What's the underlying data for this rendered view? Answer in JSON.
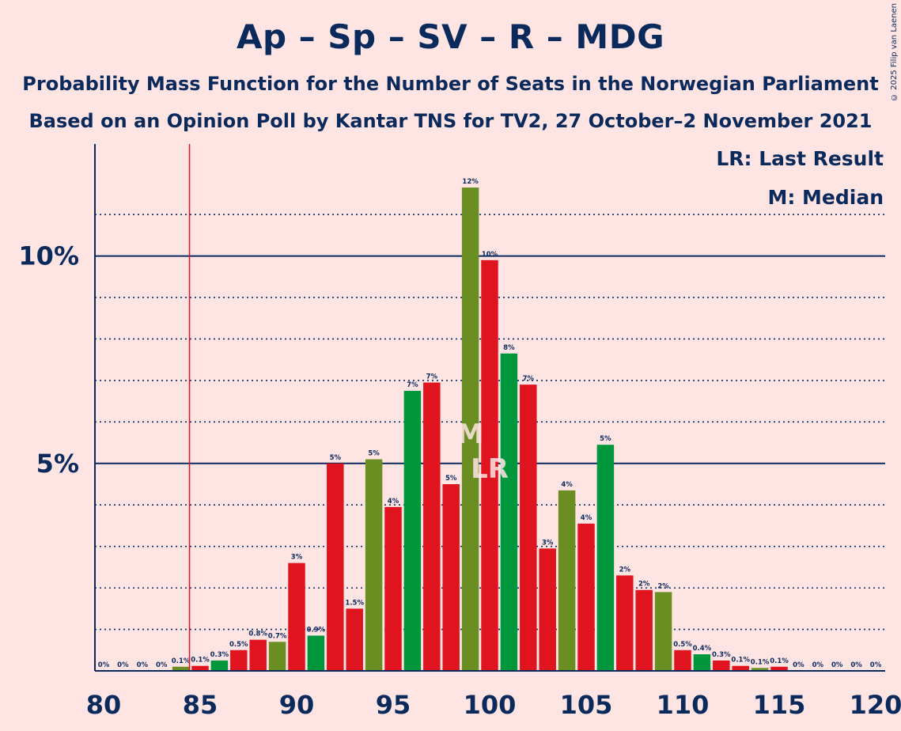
{
  "title": "Ap – Sp – SV – R – MDG",
  "subtitle_1": "Probability Mass Function for the Number of Seats in the Norwegian Parliament",
  "subtitle_2": "Based on an Opinion Poll by Kantar TNS for TV2, 27 October–2 November 2021",
  "copyright": "© 2025 Filip van Laenen",
  "legend": {
    "last_result": "LR: Last Result",
    "median": "M: Median"
  },
  "markers": {
    "median_label": "M",
    "last_result_label": "LR"
  },
  "colors": {
    "red": "#E0141E",
    "olive": "#6B8E23",
    "green": "#00963C",
    "navy": "#0A2A5C",
    "background": "#FFE4E4",
    "lr_line": "#E0141E"
  },
  "chart_data": {
    "type": "bar",
    "xlim": [
      80,
      120
    ],
    "ylim": [
      0,
      12.7
    ],
    "x_ticks": [
      80,
      85,
      90,
      95,
      100,
      105,
      110,
      115,
      120
    ],
    "y_ticks": [
      {
        "value": 5,
        "label": "5%"
      },
      {
        "value": 10,
        "label": "10%"
      }
    ],
    "minor_grid": [
      1,
      2,
      3,
      4,
      6,
      7,
      8,
      9,
      11
    ],
    "last_result": 85,
    "median": 99,
    "last_result_bar": 100,
    "bars": [
      {
        "x": 80,
        "value": 0,
        "label": "0%",
        "color": "red"
      },
      {
        "x": 81,
        "value": 0,
        "label": "0%",
        "color": "red"
      },
      {
        "x": 82,
        "value": 0,
        "label": "0%",
        "color": "red"
      },
      {
        "x": 83,
        "value": 0,
        "label": "0%",
        "color": "red"
      },
      {
        "x": 84,
        "value": 0.1,
        "label": "0.1%",
        "color": "olive"
      },
      {
        "x": 85,
        "value": 0.12,
        "label": "0.1%",
        "color": "red"
      },
      {
        "x": 86,
        "value": 0.25,
        "label": "0.3%",
        "color": "green"
      },
      {
        "x": 87,
        "value": 0.5,
        "label": "0.5%",
        "color": "red"
      },
      {
        "x": 88,
        "value": 0.75,
        "label": "0.8%",
        "color": "red"
      },
      {
        "x": 89,
        "value": 0.7,
        "label": "0.7%",
        "color": "olive"
      },
      {
        "x": 90,
        "value": 2.6,
        "label": "3%",
        "color": "red"
      },
      {
        "x": 91,
        "value": 0.85,
        "label": "0.9%",
        "color": "green"
      },
      {
        "x": 92,
        "value": 5.0,
        "label": "5%",
        "color": "red"
      },
      {
        "x": 93,
        "value": 1.5,
        "label": "1.5%",
        "color": "red"
      },
      {
        "x": 94,
        "value": 5.1,
        "label": "5%",
        "color": "olive"
      },
      {
        "x": 95,
        "value": 3.95,
        "label": "4%",
        "color": "red"
      },
      {
        "x": 96,
        "value": 6.75,
        "label": "7%",
        "color": "green"
      },
      {
        "x": 97,
        "value": 6.95,
        "label": "7%",
        "color": "red"
      },
      {
        "x": 98,
        "value": 4.5,
        "label": "5%",
        "color": "red"
      },
      {
        "x": 99,
        "value": 11.65,
        "label": "12%",
        "color": "olive"
      },
      {
        "x": 100,
        "value": 9.9,
        "label": "10%",
        "color": "red"
      },
      {
        "x": 101,
        "value": 7.65,
        "label": "8%",
        "color": "green"
      },
      {
        "x": 102,
        "value": 6.9,
        "label": "7%",
        "color": "red"
      },
      {
        "x": 103,
        "value": 2.95,
        "label": "3%",
        "color": "red"
      },
      {
        "x": 104,
        "value": 4.35,
        "label": "4%",
        "color": "olive"
      },
      {
        "x": 105,
        "value": 3.55,
        "label": "4%",
        "color": "red"
      },
      {
        "x": 106,
        "value": 5.45,
        "label": "5%",
        "color": "green"
      },
      {
        "x": 107,
        "value": 2.3,
        "label": "2%",
        "color": "red"
      },
      {
        "x": 108,
        "value": 1.95,
        "label": "2%",
        "color": "red"
      },
      {
        "x": 109,
        "value": 1.9,
        "label": "2%",
        "color": "olive"
      },
      {
        "x": 110,
        "value": 0.5,
        "label": "0.5%",
        "color": "red"
      },
      {
        "x": 111,
        "value": 0.4,
        "label": "0.4%",
        "color": "green"
      },
      {
        "x": 112,
        "value": 0.25,
        "label": "0.3%",
        "color": "red"
      },
      {
        "x": 113,
        "value": 0.12,
        "label": "0.1%",
        "color": "red"
      },
      {
        "x": 114,
        "value": 0.07,
        "label": "0.1%",
        "color": "olive"
      },
      {
        "x": 115,
        "value": 0.1,
        "label": "0.1%",
        "color": "red"
      },
      {
        "x": 116,
        "value": 0,
        "label": "0%",
        "color": "green"
      },
      {
        "x": 117,
        "value": 0,
        "label": "0%",
        "color": "red"
      },
      {
        "x": 118,
        "value": 0,
        "label": "0%",
        "color": "red"
      },
      {
        "x": 119,
        "value": 0,
        "label": "0%",
        "color": "olive"
      },
      {
        "x": 120,
        "value": 0,
        "label": "0%",
        "color": "red"
      }
    ]
  }
}
